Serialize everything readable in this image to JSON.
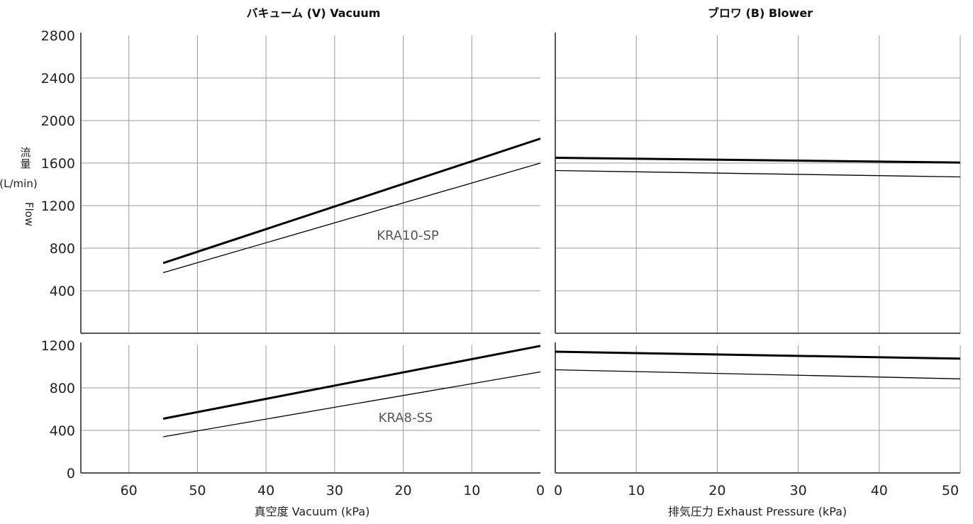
{
  "titles": {
    "vacuum": "バキューム (V)  Vacuum",
    "blower": "ブロワ (B)   Blower"
  },
  "axis_labels": {
    "vacuum_x": "真空度 Vacuum   (kPa)",
    "blower_x": "排気圧力 Exhaust Pressure   (kPa)",
    "y_jp_1": "流",
    "y_jp_2": "量",
    "y_unit": "(L/min)",
    "y_en": "Flow"
  },
  "colors": {
    "grid": "#9a9a9a",
    "axis": "#555555",
    "line": "#000000"
  },
  "chart_data": [
    {
      "type": "line",
      "model": "KRA10-SP",
      "title": "バキューム (V)  Vacuum",
      "xlabel": "真空度 Vacuum   (kPa)",
      "ylabel": "流量 (L/min) Flow",
      "xlim": [
        67,
        0
      ],
      "ylim": [
        0,
        2800
      ],
      "grid": true,
      "series": [
        {
          "style": "thick",
          "x": [
            55,
            0
          ],
          "y": [
            660,
            1830
          ]
        },
        {
          "style": "thin",
          "x": [
            55,
            0
          ],
          "y": [
            570,
            1600
          ]
        }
      ]
    },
    {
      "type": "line",
      "model": "KRA10-SP",
      "title": "ブロワ (B)   Blower",
      "xlabel": "排気圧力 Exhaust Pressure   (kPa)",
      "ylabel": "流量 (L/min) Flow",
      "xlim": [
        0,
        50
      ],
      "ylim": [
        0,
        2800
      ],
      "grid": true,
      "series": [
        {
          "style": "thick",
          "x": [
            0,
            50
          ],
          "y": [
            1650,
            1605
          ]
        },
        {
          "style": "thin",
          "x": [
            0,
            50
          ],
          "y": [
            1530,
            1470
          ]
        }
      ]
    },
    {
      "type": "line",
      "model": "KRA8-SS",
      "title": "",
      "xlabel": "真空度 Vacuum   (kPa)",
      "ylabel": "",
      "xlim": [
        67,
        0
      ],
      "ylim": [
        0,
        1200
      ],
      "grid": true,
      "series": [
        {
          "style": "thick",
          "x": [
            55,
            0
          ],
          "y": [
            510,
            1195
          ]
        },
        {
          "style": "thin",
          "x": [
            55,
            0
          ],
          "y": [
            340,
            950
          ]
        }
      ]
    },
    {
      "type": "line",
      "model": "KRA8-SS",
      "title": "",
      "xlabel": "排気圧力 Exhaust Pressure   (kPa)",
      "ylabel": "",
      "xlim": [
        0,
        50
      ],
      "ylim": [
        0,
        1200
      ],
      "grid": true,
      "series": [
        {
          "style": "thick",
          "x": [
            0,
            50
          ],
          "y": [
            1140,
            1075
          ]
        },
        {
          "style": "thin",
          "x": [
            0,
            50
          ],
          "y": [
            970,
            885
          ]
        }
      ]
    }
  ],
  "ticks": {
    "top_y": [
      "400",
      "800",
      "1200",
      "1600",
      "2000",
      "2400",
      "2800"
    ],
    "bottom_y": [
      "0",
      "400",
      "800",
      "1200"
    ],
    "vacuum_x": [
      "60",
      "50",
      "40",
      "30",
      "20",
      "10",
      "0"
    ],
    "blower_x": [
      "0",
      "10",
      "20",
      "30",
      "40",
      "50"
    ]
  }
}
